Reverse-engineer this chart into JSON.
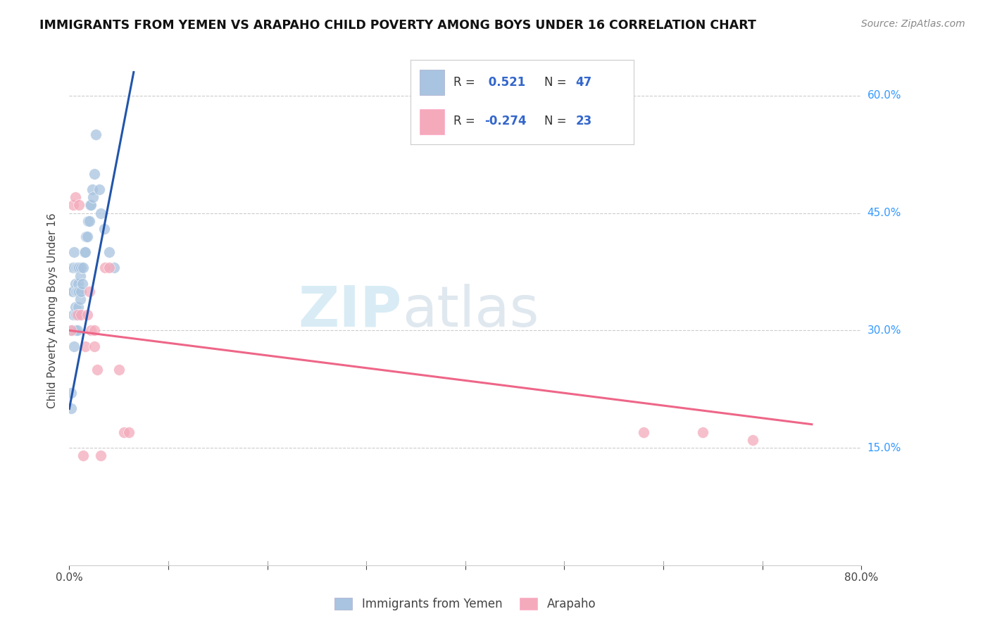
{
  "title": "IMMIGRANTS FROM YEMEN VS ARAPAHO CHILD POVERTY AMONG BOYS UNDER 16 CORRELATION CHART",
  "source": "Source: ZipAtlas.com",
  "ylabel": "Child Poverty Among Boys Under 16",
  "legend1_r": " 0.521",
  "legend1_n": "47",
  "legend2_r": "-0.274",
  "legend2_n": "23",
  "legend1_label": "Immigrants from Yemen",
  "legend2_label": "Arapaho",
  "color_blue": "#A8C4E0",
  "color_pink": "#F4AABB",
  "line_blue": "#2255AA",
  "line_pink": "#EE6688",
  "blue_x": [
    0.002,
    0.002,
    0.003,
    0.003,
    0.003,
    0.004,
    0.004,
    0.005,
    0.005,
    0.005,
    0.006,
    0.006,
    0.006,
    0.007,
    0.007,
    0.007,
    0.008,
    0.008,
    0.008,
    0.009,
    0.009,
    0.01,
    0.01,
    0.01,
    0.011,
    0.011,
    0.012,
    0.012,
    0.013,
    0.014,
    0.015,
    0.016,
    0.017,
    0.018,
    0.019,
    0.02,
    0.021,
    0.022,
    0.023,
    0.024,
    0.025,
    0.027,
    0.03,
    0.032,
    0.035,
    0.04,
    0.045
  ],
  "blue_y": [
    0.2,
    0.22,
    0.3,
    0.35,
    0.38,
    0.32,
    0.35,
    0.28,
    0.38,
    0.4,
    0.3,
    0.33,
    0.36,
    0.32,
    0.35,
    0.38,
    0.3,
    0.35,
    0.38,
    0.33,
    0.36,
    0.32,
    0.35,
    0.38,
    0.34,
    0.37,
    0.35,
    0.38,
    0.36,
    0.38,
    0.4,
    0.4,
    0.42,
    0.42,
    0.44,
    0.44,
    0.46,
    0.46,
    0.48,
    0.47,
    0.5,
    0.55,
    0.48,
    0.45,
    0.43,
    0.4,
    0.38
  ],
  "pink_x": [
    0.002,
    0.004,
    0.006,
    0.008,
    0.01,
    0.012,
    0.014,
    0.016,
    0.018,
    0.02,
    0.022,
    0.025,
    0.028,
    0.032,
    0.036,
    0.04,
    0.05,
    0.055,
    0.06,
    0.58,
    0.64,
    0.69,
    0.025
  ],
  "pink_y": [
    0.3,
    0.46,
    0.47,
    0.32,
    0.46,
    0.32,
    0.14,
    0.28,
    0.32,
    0.35,
    0.3,
    0.28,
    0.25,
    0.14,
    0.38,
    0.38,
    0.25,
    0.17,
    0.17,
    0.17,
    0.17,
    0.16,
    0.3
  ],
  "blue_line_x": [
    0.0,
    0.065
  ],
  "blue_line_y": [
    0.2,
    0.63
  ],
  "pink_line_x": [
    0.0,
    0.75
  ],
  "pink_line_y": [
    0.3,
    0.18
  ],
  "xlim": [
    0.0,
    0.8
  ],
  "ylim": [
    0.0,
    0.65
  ],
  "yticks": [
    0.15,
    0.3,
    0.45,
    0.6
  ],
  "ytick_labels": [
    "15.0%",
    "30.0%",
    "45.0%",
    "60.0%"
  ],
  "xtick_labels_show": [
    "0.0%",
    "80.0%"
  ],
  "xtick_positions": [
    0.0,
    0.1,
    0.2,
    0.3,
    0.4,
    0.5,
    0.6,
    0.7,
    0.8
  ]
}
